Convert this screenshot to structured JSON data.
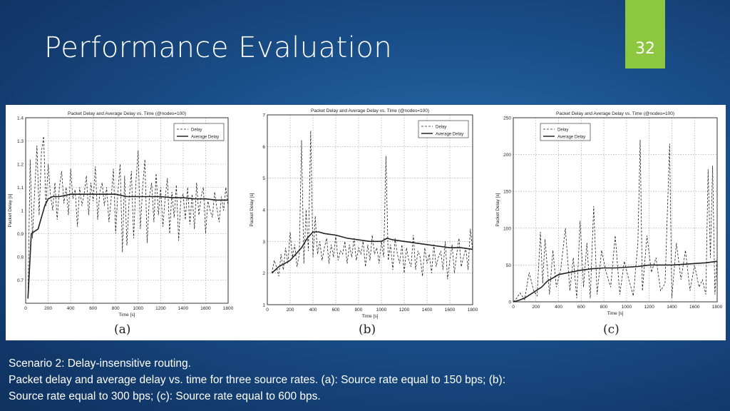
{
  "slide": {
    "title": "Performance Evaluation",
    "page_number": "32",
    "caption_line1": "Scenario 2: Delay-insensitive routing.",
    "caption_line2": "Packet delay and average delay vs. time for three source rates. (a): Source rate equal to 150 bps; (b):",
    "caption_line3": "Source rate equal to 300 bps; (c): Source rate equal to 600 bps.",
    "accent_color": "#8dc63f"
  },
  "chart_data": [
    {
      "type": "line",
      "panel_label": "(a)",
      "title": "Packet Delay and Average Delay vs. Time (@nodes=100)",
      "xlabel": "Time [s]",
      "ylabel": "Packet Delay [s]",
      "xlim": [
        0,
        1800
      ],
      "ylim": [
        0.6,
        1.4
      ],
      "xticks": [
        0,
        200,
        400,
        600,
        800,
        1000,
        1200,
        1400,
        1600,
        1800
      ],
      "yticks": [
        0.7,
        0.8,
        0.9,
        1,
        1.1,
        1.2,
        1.3,
        1.4
      ],
      "grid": true,
      "legend_position": "top-right",
      "series": [
        {
          "name": "Delay",
          "style": "dashed",
          "x": [
            20,
            40,
            60,
            80,
            100,
            120,
            140,
            160,
            180,
            200,
            220,
            240,
            260,
            280,
            300,
            320,
            340,
            360,
            380,
            400,
            420,
            440,
            460,
            480,
            500,
            520,
            540,
            560,
            580,
            600,
            620,
            640,
            660,
            680,
            700,
            720,
            740,
            760,
            780,
            800,
            820,
            840,
            860,
            880,
            900,
            920,
            940,
            960,
            980,
            1000,
            1020,
            1040,
            1060,
            1080,
            1100,
            1120,
            1140,
            1160,
            1180,
            1200,
            1220,
            1240,
            1260,
            1280,
            1300,
            1320,
            1340,
            1360,
            1380,
            1400,
            1420,
            1440,
            1460,
            1480,
            1500,
            1520,
            1540,
            1560,
            1580,
            1600,
            1620,
            1640,
            1660,
            1680,
            1700,
            1720,
            1740,
            1760,
            1780,
            1800
          ],
          "values": [
            0.62,
            1.22,
            0.88,
            1.08,
            1.28,
            0.98,
            1.25,
            1.32,
            1.02,
            1.2,
            1.07,
            1.0,
            1.12,
            0.96,
            1.1,
            1.17,
            1.03,
            1.1,
            0.98,
            1.18,
            1.05,
            1.09,
            0.93,
            1.1,
            1.02,
            1.07,
            1.15,
            0.98,
            1.12,
            1.04,
            1.19,
            0.96,
            1.08,
            1.12,
            1.02,
            1.1,
            0.95,
            1.05,
            1.18,
            0.9,
            1.08,
            1.2,
            0.82,
            1.15,
            0.85,
            1.05,
            1.17,
            0.88,
            1.12,
            1.26,
            0.92,
            1.1,
            1.22,
            0.86,
            1.06,
            1.12,
            0.95,
            1.16,
            0.98,
            1.1,
            0.93,
            1.05,
            1.14,
            0.9,
            1.08,
            0.97,
            1.11,
            0.87,
            1.05,
            1.07,
            0.96,
            1.1,
            0.94,
            1.07,
            0.92,
            1.12,
            0.98,
            1.06,
            1.1,
            0.9,
            1.04,
            1.0,
            0.97,
            1.08,
            1.01,
            0.95,
            1.06,
            1.0,
            1.1,
            1.02
          ]
        },
        {
          "name": "Average Delay",
          "style": "solid",
          "x": [
            20,
            50,
            80,
            110,
            140,
            170,
            200,
            240,
            300,
            400,
            500,
            600,
            700,
            800,
            900,
            1000,
            1100,
            1200,
            1300,
            1400,
            1500,
            1600,
            1700,
            1800
          ],
          "values": [
            0.62,
            0.9,
            0.91,
            0.92,
            0.97,
            1.02,
            1.05,
            1.06,
            1.06,
            1.07,
            1.07,
            1.07,
            1.07,
            1.07,
            1.06,
            1.06,
            1.06,
            1.06,
            1.055,
            1.055,
            1.05,
            1.05,
            1.045,
            1.045
          ]
        }
      ]
    },
    {
      "type": "line",
      "panel_label": "(b)",
      "title": "Packet Delay and Average Delay vs. Time (@nodes=100)",
      "xlabel": "Time [s]",
      "ylabel": "Packet Delay [s]",
      "xlim": [
        0,
        1800
      ],
      "ylim": [
        1,
        7
      ],
      "xticks": [
        0,
        200,
        400,
        600,
        800,
        1000,
        1200,
        1400,
        1600,
        1800
      ],
      "yticks": [
        1,
        2,
        3,
        4,
        5,
        6,
        7
      ],
      "grid": true,
      "legend_position": "top-right",
      "series": [
        {
          "name": "Delay",
          "style": "dashed",
          "x": [
            40,
            60,
            80,
            100,
            120,
            140,
            160,
            180,
            200,
            220,
            240,
            260,
            280,
            300,
            320,
            340,
            360,
            380,
            400,
            420,
            440,
            460,
            480,
            500,
            520,
            540,
            560,
            580,
            600,
            620,
            640,
            660,
            680,
            700,
            720,
            740,
            760,
            780,
            800,
            820,
            840,
            860,
            880,
            900,
            920,
            940,
            960,
            980,
            1000,
            1020,
            1040,
            1060,
            1080,
            1100,
            1120,
            1140,
            1160,
            1180,
            1200,
            1220,
            1240,
            1260,
            1280,
            1300,
            1320,
            1340,
            1360,
            1380,
            1400,
            1420,
            1440,
            1460,
            1480,
            1500,
            1520,
            1540,
            1560,
            1580,
            1600,
            1620,
            1640,
            1660,
            1680,
            1700,
            1720,
            1740,
            1760,
            1780,
            1800
          ],
          "values": [
            2.0,
            2.4,
            2.2,
            1.9,
            2.6,
            2.1,
            2.8,
            2.3,
            3.3,
            2.5,
            2.9,
            2.2,
            2.6,
            6.2,
            2.3,
            4.0,
            2.7,
            6.5,
            2.5,
            3.8,
            2.6,
            3.0,
            2.4,
            2.8,
            3.1,
            2.3,
            2.9,
            2.5,
            3.2,
            2.4,
            2.7,
            2.6,
            3.0,
            2.3,
            2.9,
            2.5,
            3.1,
            2.4,
            2.8,
            2.6,
            3.0,
            2.2,
            2.9,
            2.4,
            3.2,
            2.6,
            2.8,
            2.3,
            3.0,
            2.5,
            5.7,
            2.4,
            2.9,
            2.1,
            3.1,
            2.6,
            2.3,
            2.9,
            2.0,
            2.8,
            2.4,
            2.2,
            3.2,
            2.1,
            2.7,
            2.5,
            1.9,
            2.8,
            2.3,
            2.6,
            2.0,
            2.9,
            2.2,
            2.5,
            2.7,
            2.1,
            3.0,
            1.8,
            2.4,
            2.9,
            2.0,
            2.6,
            3.1,
            2.2,
            2.5,
            2.8,
            2.1,
            3.4,
            2.7
          ]
        },
        {
          "name": "Average Delay",
          "style": "solid",
          "x": [
            40,
            100,
            150,
            200,
            250,
            300,
            350,
            400,
            450,
            500,
            600,
            700,
            800,
            900,
            1000,
            1050,
            1100,
            1200,
            1300,
            1400,
            1500,
            1600,
            1700,
            1800
          ],
          "values": [
            2.0,
            2.2,
            2.3,
            2.4,
            2.6,
            2.8,
            3.1,
            3.3,
            3.3,
            3.25,
            3.2,
            3.1,
            3.05,
            3.0,
            3.0,
            3.1,
            3.05,
            3.0,
            2.95,
            2.9,
            2.85,
            2.8,
            2.8,
            2.75
          ]
        }
      ]
    },
    {
      "type": "line",
      "panel_label": "(c)",
      "title": "Packet Delay and Average Delay vs. Time (@nodes=100)",
      "xlabel": "Time [s]",
      "ylabel": "Packet Delay [s]",
      "xlim": [
        0,
        1800
      ],
      "ylim": [
        0,
        250
      ],
      "xticks": [
        0,
        200,
        400,
        600,
        800,
        1000,
        1200,
        1400,
        1600,
        1800
      ],
      "yticks": [
        0,
        50,
        100,
        150,
        200,
        250
      ],
      "grid": true,
      "legend_position": "top-left",
      "series": [
        {
          "name": "Delay",
          "style": "dashed",
          "x": [
            0,
            30,
            60,
            100,
            140,
            180,
            210,
            240,
            260,
            280,
            320,
            350,
            380,
            420,
            460,
            500,
            530,
            560,
            590,
            620,
            650,
            680,
            710,
            740,
            780,
            820,
            860,
            900,
            940,
            980,
            1020,
            1060,
            1100,
            1120,
            1140,
            1180,
            1220,
            1260,
            1300,
            1340,
            1380,
            1400,
            1440,
            1480,
            1520,
            1560,
            1600,
            1640,
            1670,
            1700,
            1720,
            1740,
            1760,
            1780,
            1800
          ],
          "values": [
            0,
            5,
            12,
            3,
            40,
            15,
            8,
            95,
            25,
            85,
            10,
            70,
            20,
            45,
            100,
            15,
            60,
            5,
            110,
            20,
            80,
            5,
            130,
            10,
            70,
            40,
            20,
            90,
            10,
            55,
            30,
            8,
            80,
            220,
            15,
            90,
            40,
            60,
            15,
            25,
            215,
            5,
            80,
            30,
            70,
            15,
            50,
            20,
            30,
            10,
            180,
            60,
            185,
            10,
            60
          ]
        },
        {
          "name": "Average Delay",
          "style": "solid",
          "x": [
            0,
            50,
            100,
            150,
            200,
            250,
            300,
            400,
            500,
            600,
            700,
            800,
            900,
            1000,
            1100,
            1200,
            1300,
            1400,
            1500,
            1600,
            1700,
            1800
          ],
          "values": [
            0,
            2,
            5,
            10,
            15,
            20,
            28,
            37,
            40,
            43,
            45,
            46,
            46,
            47,
            48,
            50,
            50,
            50,
            51,
            52,
            53,
            55
          ]
        }
      ]
    }
  ]
}
